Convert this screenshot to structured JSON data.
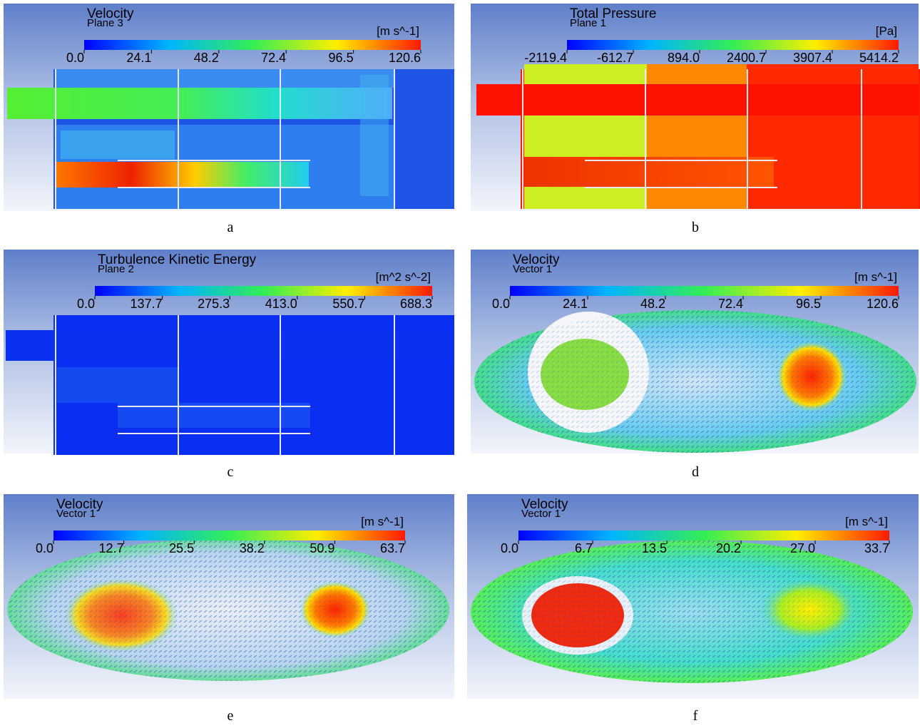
{
  "panels": [
    {
      "title": "Velocity",
      "subtitle": "Plane 3",
      "unit": "[m s^-1]",
      "ticks": [
        "0.0",
        "24.1",
        "48.2",
        "72.4",
        "96.5",
        "120.6"
      ],
      "caption": "a"
    },
    {
      "title": "Total Pressure",
      "subtitle": "Plane 1",
      "unit": "[Pa]",
      "ticks": [
        "-2119.4",
        "-612.7",
        "894.0",
        "2400.7",
        "3907.4",
        "5414.2"
      ],
      "caption": "b"
    },
    {
      "title": "Turbulence Kinetic Energy",
      "subtitle": "Plane 2",
      "unit": "[m^2 s^-2]",
      "ticks": [
        "0.0",
        "137.7",
        "275.3",
        "413.0",
        "550.7",
        "688.3"
      ],
      "caption": "c"
    },
    {
      "title": "Velocity",
      "subtitle": "Vector 1",
      "unit": "[m s^-1]",
      "ticks": [
        "0.0",
        "24.1",
        "48.2",
        "72.4",
        "96.5",
        "120.6"
      ],
      "caption": "d"
    },
    {
      "title": "Velocity",
      "subtitle": "Vector 1",
      "unit": "[m s^-1]",
      "ticks": [
        "0.0",
        "12.7",
        "25.5",
        "38.2",
        "50.9",
        "63.7"
      ],
      "caption": "e"
    },
    {
      "title": "Velocity",
      "subtitle": "Vector 1",
      "unit": "[m s^-1]",
      "ticks": [
        "0.0",
        "6.7",
        "13.5",
        "20.2",
        "27.0",
        "33.7"
      ],
      "caption": "f"
    }
  ]
}
